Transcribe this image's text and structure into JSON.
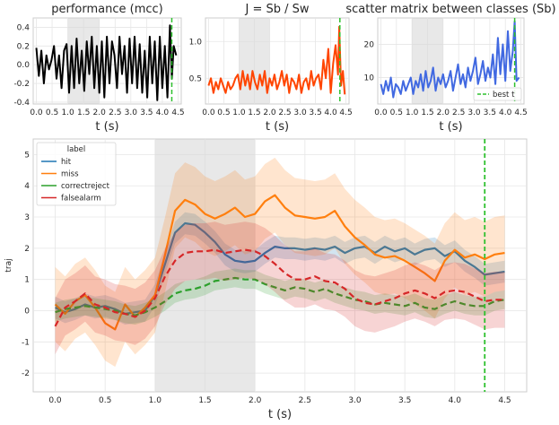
{
  "chart_data": [
    {
      "type": "line",
      "title": "performance (mcc)",
      "xlabel": "t (s)",
      "ylabel": "",
      "xlim": [
        -0.1,
        4.6
      ],
      "ylim": [
        -0.42,
        0.5
      ],
      "xticks": [
        0.0,
        0.5,
        1.0,
        1.5,
        2.0,
        2.5,
        3.0,
        3.5,
        4.0,
        4.5
      ],
      "yticks": [
        -0.4,
        -0.2,
        0.0,
        0.2,
        0.4
      ],
      "shaded_x": [
        1.0,
        2.0
      ],
      "vline_x": 4.3,
      "series": [
        {
          "color": "#000000",
          "x": [
            0.0,
            0.08,
            0.16,
            0.24,
            0.32,
            0.4,
            0.48,
            0.56,
            0.64,
            0.72,
            0.8,
            0.88,
            0.96,
            1.04,
            1.12,
            1.2,
            1.28,
            1.36,
            1.44,
            1.52,
            1.6,
            1.68,
            1.76,
            1.84,
            1.92,
            2.0,
            2.08,
            2.16,
            2.24,
            2.32,
            2.4,
            2.48,
            2.56,
            2.64,
            2.72,
            2.8,
            2.88,
            2.96,
            3.04,
            3.12,
            3.2,
            3.28,
            3.36,
            3.44,
            3.52,
            3.6,
            3.68,
            3.76,
            3.84,
            3.92,
            4.0,
            4.08,
            4.16,
            4.24,
            4.3,
            4.36,
            4.44
          ],
          "y": [
            0.18,
            -0.12,
            0.15,
            -0.2,
            0.1,
            -0.05,
            0.05,
            0.2,
            -0.15,
            0.1,
            -0.25,
            0.15,
            0.22,
            -0.3,
            0.2,
            -0.25,
            0.28,
            -0.2,
            0.15,
            -0.28,
            0.25,
            -0.1,
            0.3,
            -0.25,
            0.2,
            -0.3,
            0.25,
            -0.35,
            0.3,
            -0.2,
            0.25,
            0.1,
            -0.25,
            0.3,
            -0.1,
            0.2,
            -0.3,
            0.28,
            -0.2,
            0.3,
            -0.25,
            0.22,
            -0.3,
            0.15,
            -0.35,
            0.3,
            -0.2,
            0.25,
            -0.38,
            0.3,
            -0.25,
            0.2,
            -0.35,
            0.42,
            -0.15,
            0.2,
            0.1
          ]
        }
      ]
    },
    {
      "type": "line",
      "title": "J = Sb / Sw",
      "xlabel": "t (s)",
      "ylabel": "",
      "xlim": [
        -0.1,
        4.6
      ],
      "ylim": [
        0.15,
        1.32
      ],
      "xticks": [
        0.0,
        0.5,
        1.0,
        1.5,
        2.0,
        2.5,
        3.0,
        3.5,
        4.0,
        4.5
      ],
      "yticks": [
        0.5,
        1.0
      ],
      "shaded_x": [
        1.0,
        2.0
      ],
      "vline_x": 4.3,
      "series": [
        {
          "color": "#ff4500",
          "x": [
            0.0,
            0.08,
            0.16,
            0.24,
            0.32,
            0.4,
            0.48,
            0.56,
            0.64,
            0.72,
            0.8,
            0.88,
            0.96,
            1.04,
            1.12,
            1.2,
            1.28,
            1.36,
            1.44,
            1.52,
            1.6,
            1.68,
            1.76,
            1.84,
            1.92,
            2.0,
            2.08,
            2.16,
            2.24,
            2.32,
            2.4,
            2.48,
            2.56,
            2.64,
            2.72,
            2.8,
            2.88,
            2.96,
            3.04,
            3.12,
            3.2,
            3.28,
            3.36,
            3.44,
            3.52,
            3.6,
            3.68,
            3.76,
            3.84,
            3.92,
            4.0,
            4.08,
            4.16,
            4.24,
            4.28,
            4.34,
            4.4,
            4.46
          ],
          "y": [
            0.4,
            0.5,
            0.3,
            0.45,
            0.35,
            0.5,
            0.4,
            0.3,
            0.45,
            0.35,
            0.4,
            0.5,
            0.55,
            0.35,
            0.6,
            0.4,
            0.55,
            0.35,
            0.6,
            0.45,
            0.35,
            0.55,
            0.4,
            0.6,
            0.3,
            0.5,
            0.4,
            0.55,
            0.35,
            0.45,
            0.6,
            0.4,
            0.55,
            0.3,
            0.5,
            0.45,
            0.35,
            0.55,
            0.3,
            0.45,
            0.5,
            0.35,
            0.6,
            0.4,
            0.5,
            0.55,
            0.35,
            0.75,
            0.5,
            0.9,
            0.3,
            0.7,
            0.95,
            0.55,
            1.2,
            0.4,
            0.6,
            0.28
          ]
        }
      ]
    },
    {
      "type": "line",
      "title": "scatter matrix between classes (Sb)",
      "xlabel": "t (s)",
      "ylabel": "",
      "xlim": [
        -0.1,
        4.6
      ],
      "ylim": [
        2,
        28
      ],
      "xticks": [
        0.0,
        0.5,
        1.0,
        1.5,
        2.0,
        2.5,
        3.0,
        3.5,
        4.0,
        4.5
      ],
      "yticks": [
        10,
        20
      ],
      "shaded_x": [
        1.0,
        2.0
      ],
      "vline_x": 4.3,
      "legend": {
        "label": "best t",
        "position": "lower-right"
      },
      "series": [
        {
          "color": "#4169e1",
          "x": [
            0.0,
            0.08,
            0.16,
            0.24,
            0.32,
            0.4,
            0.48,
            0.56,
            0.64,
            0.72,
            0.8,
            0.88,
            0.96,
            1.04,
            1.12,
            1.2,
            1.28,
            1.36,
            1.44,
            1.52,
            1.6,
            1.68,
            1.76,
            1.84,
            1.92,
            2.0,
            2.08,
            2.16,
            2.24,
            2.32,
            2.4,
            2.48,
            2.56,
            2.64,
            2.72,
            2.8,
            2.88,
            2.96,
            3.04,
            3.12,
            3.2,
            3.28,
            3.36,
            3.44,
            3.52,
            3.6,
            3.68,
            3.76,
            3.84,
            3.92,
            4.0,
            4.08,
            4.16,
            4.24,
            4.3,
            4.36,
            4.44
          ],
          "y": [
            8,
            5,
            9,
            6,
            10,
            4,
            8,
            7,
            5,
            9,
            6,
            8,
            10,
            5,
            9,
            7,
            11,
            6,
            12,
            7,
            9,
            13,
            6,
            10,
            8,
            11,
            7,
            9,
            12,
            6,
            10,
            14,
            8,
            11,
            7,
            13,
            9,
            12,
            16,
            8,
            11,
            15,
            9,
            13,
            10,
            17,
            8,
            22,
            11,
            20,
            9,
            24,
            12,
            18,
            27,
            9,
            10
          ]
        }
      ]
    },
    {
      "type": "line",
      "title": "",
      "xlabel": "t (s)",
      "ylabel": "traj",
      "xlim": [
        -0.22,
        4.72
      ],
      "ylim": [
        -2.6,
        5.5
      ],
      "xticks": [
        0.0,
        0.5,
        1.0,
        1.5,
        2.0,
        2.5,
        3.0,
        3.5,
        4.0,
        4.5
      ],
      "yticks": [
        -2,
        -1,
        0,
        1,
        2,
        3,
        4,
        5
      ],
      "shaded_x": [
        1.0,
        2.0
      ],
      "vline_x": 4.3,
      "legend": {
        "title": "label",
        "position": "top-left"
      },
      "series": [
        {
          "name": "hit",
          "color": "#1f77b4",
          "dashed": false,
          "band": 0.35,
          "x": [
            0.0,
            0.1,
            0.2,
            0.3,
            0.4,
            0.5,
            0.6,
            0.7,
            0.8,
            0.9,
            1.0,
            1.1,
            1.2,
            1.3,
            1.4,
            1.5,
            1.6,
            1.7,
            1.8,
            1.9,
            2.0,
            2.1,
            2.2,
            2.3,
            2.4,
            2.5,
            2.6,
            2.7,
            2.8,
            2.9,
            3.0,
            3.1,
            3.2,
            3.3,
            3.4,
            3.5,
            3.6,
            3.7,
            3.8,
            3.9,
            4.0,
            4.1,
            4.2,
            4.3,
            4.4,
            4.5
          ],
          "y": [
            0.1,
            -0.05,
            0.05,
            0.2,
            0.1,
            0.15,
            0.05,
            -0.1,
            -0.05,
            0.0,
            0.5,
            1.5,
            2.5,
            2.8,
            2.75,
            2.5,
            2.2,
            1.8,
            1.6,
            1.55,
            1.6,
            1.85,
            2.05,
            2.0,
            2.0,
            1.95,
            2.0,
            1.95,
            2.05,
            1.85,
            2.0,
            2.05,
            1.85,
            2.05,
            1.9,
            2.0,
            1.8,
            1.95,
            2.0,
            1.75,
            1.9,
            1.6,
            1.4,
            1.15,
            1.2,
            1.25
          ]
        },
        {
          "name": "miss",
          "color": "#ff7f0e",
          "dashed": false,
          "band": 1.2,
          "x": [
            0.0,
            0.1,
            0.2,
            0.3,
            0.4,
            0.5,
            0.6,
            0.7,
            0.8,
            0.9,
            1.0,
            1.1,
            1.2,
            1.3,
            1.4,
            1.5,
            1.6,
            1.7,
            1.8,
            1.9,
            2.0,
            2.1,
            2.2,
            2.3,
            2.4,
            2.5,
            2.6,
            2.7,
            2.8,
            2.9,
            3.0,
            3.1,
            3.2,
            3.3,
            3.4,
            3.5,
            3.6,
            3.7,
            3.8,
            3.9,
            4.0,
            4.1,
            4.2,
            4.3,
            4.4,
            4.5
          ],
          "y": [
            0.2,
            -0.1,
            0.3,
            0.5,
            0.1,
            -0.4,
            -0.6,
            0.2,
            -0.2,
            0.1,
            0.5,
            1.8,
            3.2,
            3.55,
            3.4,
            3.1,
            2.95,
            3.1,
            3.3,
            3.0,
            3.1,
            3.5,
            3.7,
            3.3,
            3.05,
            3.0,
            2.95,
            3.0,
            3.2,
            2.7,
            2.35,
            2.1,
            1.8,
            1.7,
            1.75,
            1.6,
            1.4,
            1.2,
            0.95,
            1.6,
            1.95,
            1.7,
            1.8,
            1.65,
            1.8,
            1.85
          ]
        },
        {
          "name": "correctreject",
          "color": "#2ca02c",
          "dashed": true,
          "band": 0.3,
          "x": [
            0.0,
            0.1,
            0.2,
            0.3,
            0.4,
            0.5,
            0.6,
            0.7,
            0.8,
            0.9,
            1.0,
            1.1,
            1.2,
            1.3,
            1.4,
            1.5,
            1.6,
            1.7,
            1.8,
            1.9,
            2.0,
            2.1,
            2.2,
            2.3,
            2.4,
            2.5,
            2.6,
            2.7,
            2.8,
            2.9,
            3.0,
            3.1,
            3.2,
            3.3,
            3.4,
            3.5,
            3.6,
            3.7,
            3.8,
            3.9,
            4.0,
            4.1,
            4.2,
            4.3,
            4.4,
            4.5
          ],
          "y": [
            -0.05,
            0.05,
            0.1,
            0.15,
            0.1,
            0.05,
            0.0,
            -0.1,
            -0.15,
            -0.05,
            0.1,
            0.3,
            0.55,
            0.65,
            0.7,
            0.8,
            0.95,
            1.0,
            1.05,
            1.0,
            1.0,
            0.85,
            0.75,
            0.65,
            0.75,
            0.7,
            0.6,
            0.7,
            0.55,
            0.45,
            0.35,
            0.3,
            0.2,
            0.25,
            0.2,
            0.15,
            0.25,
            0.1,
            0.05,
            0.2,
            0.3,
            0.2,
            0.15,
            0.15,
            0.3,
            0.35
          ]
        },
        {
          "name": "falsealarm",
          "color": "#d62728",
          "dashed": true,
          "band": 0.9,
          "x": [
            0.0,
            0.1,
            0.2,
            0.3,
            0.4,
            0.5,
            0.6,
            0.7,
            0.8,
            0.9,
            1.0,
            1.1,
            1.2,
            1.3,
            1.4,
            1.5,
            1.6,
            1.7,
            1.8,
            1.9,
            2.0,
            2.1,
            2.2,
            2.3,
            2.4,
            2.5,
            2.6,
            2.7,
            2.8,
            2.9,
            3.0,
            3.1,
            3.2,
            3.3,
            3.4,
            3.5,
            3.6,
            3.7,
            3.8,
            3.9,
            4.0,
            4.1,
            4.2,
            4.3,
            4.4,
            4.5
          ],
          "y": [
            -0.5,
            0.1,
            0.3,
            0.55,
            0.2,
            0.1,
            -0.05,
            -0.1,
            -0.2,
            0.0,
            0.4,
            1.1,
            1.6,
            1.85,
            1.9,
            1.9,
            1.95,
            1.85,
            1.9,
            1.95,
            1.9,
            1.75,
            1.5,
            1.2,
            1.0,
            1.0,
            1.1,
            0.95,
            0.9,
            0.7,
            0.4,
            0.25,
            0.2,
            0.3,
            0.4,
            0.55,
            0.65,
            0.55,
            0.4,
            0.6,
            0.65,
            0.6,
            0.45,
            0.3,
            0.35,
            0.35
          ]
        }
      ]
    }
  ]
}
